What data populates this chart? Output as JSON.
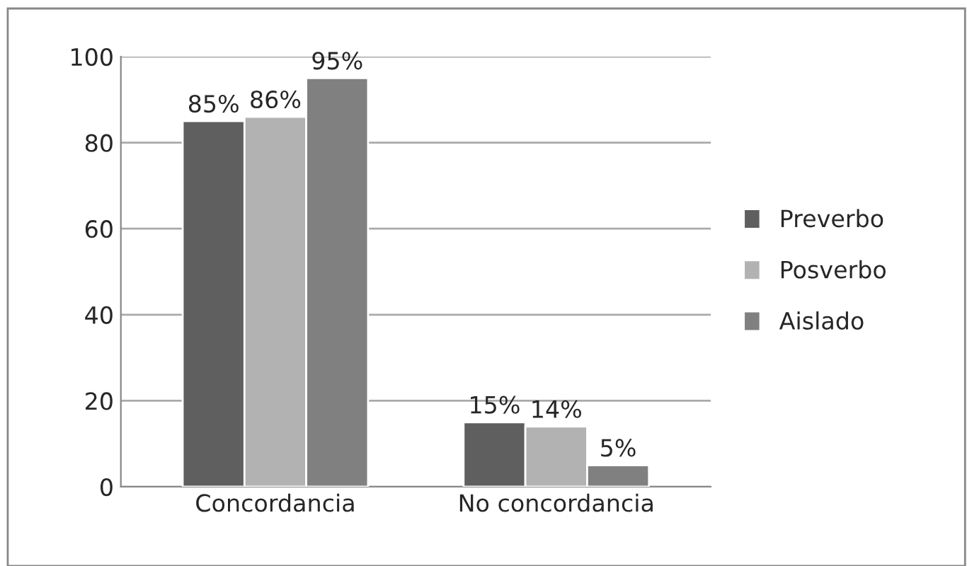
{
  "chart_data": {
    "type": "bar",
    "categories": [
      "Concordancia",
      "No concordancia"
    ],
    "series": [
      {
        "name": "Preverbo",
        "color": "#5f5f5f",
        "values": [
          85,
          15
        ],
        "value_labels": [
          "85%",
          "15%"
        ]
      },
      {
        "name": "Posverbo",
        "color": "#b2b2b2",
        "values": [
          86,
          14
        ],
        "value_labels": [
          "86%",
          "14%"
        ]
      },
      {
        "name": "Aislado",
        "color": "#808080",
        "values": [
          95,
          5
        ],
        "value_labels": [
          "95%",
          "5%"
        ]
      }
    ],
    "ylim": [
      0,
      100
    ],
    "yticks": [
      0,
      20,
      40,
      60,
      80,
      100
    ],
    "grid": "y",
    "legend": "right"
  }
}
